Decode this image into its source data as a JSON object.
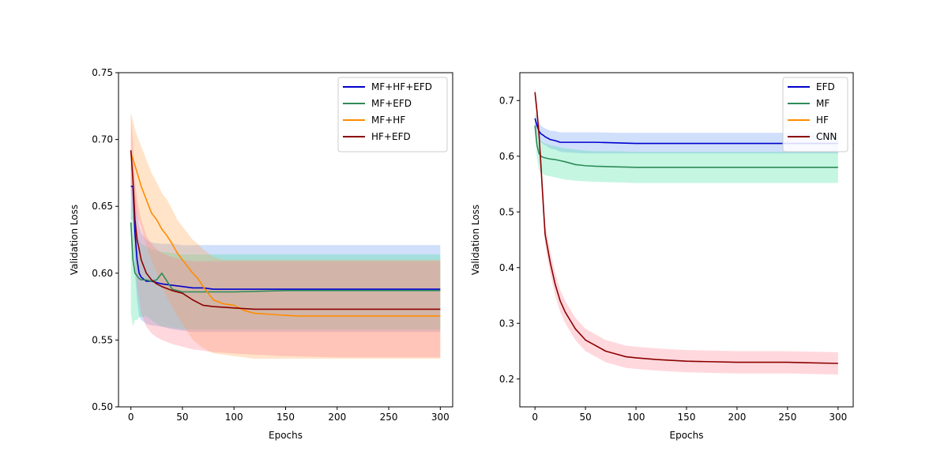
{
  "chart_data": [
    {
      "type": "line",
      "title": "",
      "xlabel": "Epochs",
      "ylabel": "Validation Loss",
      "xlim": [
        -12,
        312
      ],
      "ylim": [
        0.5,
        0.75
      ],
      "xticks": [
        0,
        50,
        100,
        150,
        200,
        250,
        300
      ],
      "yticks": [
        0.5,
        0.55,
        0.6,
        0.65,
        0.7,
        0.75
      ],
      "ytick_labels": [
        "0.50",
        "0.55",
        "0.60",
        "0.65",
        "0.70",
        "0.75"
      ],
      "legend_position": "top-right",
      "series": [
        {
          "name": "MF+HF+EFD",
          "color": "#0000cd",
          "band_color": "#6495ed",
          "x": [
            0,
            2,
            4,
            6,
            8,
            10,
            15,
            20,
            30,
            40,
            50,
            60,
            70,
            80,
            100,
            150,
            200,
            250,
            300
          ],
          "mean": [
            0.665,
            0.665,
            0.63,
            0.61,
            0.6,
            0.597,
            0.594,
            0.594,
            0.592,
            0.591,
            0.59,
            0.589,
            0.589,
            0.588,
            0.588,
            0.588,
            0.588,
            0.588,
            0.588
          ],
          "upper": [
            0.69,
            0.68,
            0.66,
            0.645,
            0.635,
            0.63,
            0.625,
            0.623,
            0.622,
            0.622,
            0.621,
            0.621,
            0.621,
            0.621,
            0.621,
            0.621,
            0.621,
            0.621,
            0.621
          ],
          "lower": [
            0.64,
            0.64,
            0.6,
            0.58,
            0.568,
            0.565,
            0.562,
            0.561,
            0.56,
            0.558,
            0.557,
            0.556,
            0.556,
            0.556,
            0.556,
            0.556,
            0.556,
            0.556,
            0.556
          ]
        },
        {
          "name": "MF+EFD",
          "color": "#2e8b57",
          "band_color": "#40e0a0",
          "x": [
            0,
            2,
            4,
            6,
            8,
            10,
            15,
            20,
            25,
            30,
            40,
            50,
            60,
            80,
            100,
            150,
            200,
            250,
            300
          ],
          "mean": [
            0.638,
            0.61,
            0.6,
            0.598,
            0.596,
            0.595,
            0.595,
            0.594,
            0.595,
            0.6,
            0.588,
            0.586,
            0.586,
            0.586,
            0.586,
            0.587,
            0.587,
            0.587,
            0.587
          ],
          "upper": [
            0.66,
            0.645,
            0.635,
            0.63,
            0.625,
            0.622,
            0.62,
            0.618,
            0.617,
            0.616,
            0.615,
            0.614,
            0.614,
            0.614,
            0.614,
            0.614,
            0.614,
            0.614,
            0.614
          ],
          "lower": [
            0.57,
            0.56,
            0.565,
            0.565,
            0.567,
            0.567,
            0.568,
            0.565,
            0.562,
            0.56,
            0.559,
            0.558,
            0.558,
            0.558,
            0.558,
            0.558,
            0.558,
            0.558,
            0.558
          ]
        },
        {
          "name": "MF+HF",
          "color": "#ff8c00",
          "band_color": "#ffa54f",
          "x": [
            0,
            5,
            10,
            15,
            20,
            25,
            30,
            35,
            40,
            45,
            50,
            55,
            60,
            65,
            70,
            75,
            80,
            90,
            100,
            110,
            120,
            140,
            160,
            200,
            250,
            300
          ],
          "mean": [
            0.69,
            0.678,
            0.665,
            0.655,
            0.645,
            0.64,
            0.633,
            0.628,
            0.622,
            0.615,
            0.61,
            0.605,
            0.6,
            0.596,
            0.59,
            0.585,
            0.58,
            0.577,
            0.576,
            0.572,
            0.57,
            0.569,
            0.568,
            0.568,
            0.568,
            0.568
          ],
          "upper": [
            0.72,
            0.705,
            0.695,
            0.685,
            0.675,
            0.668,
            0.66,
            0.655,
            0.648,
            0.64,
            0.635,
            0.63,
            0.625,
            0.622,
            0.618,
            0.615,
            0.612,
            0.61,
            0.61,
            0.61,
            0.61,
            0.61,
            0.61,
            0.61,
            0.61,
            0.61
          ],
          "lower": [
            0.66,
            0.645,
            0.635,
            0.62,
            0.61,
            0.6,
            0.59,
            0.582,
            0.575,
            0.568,
            0.562,
            0.556,
            0.55,
            0.547,
            0.544,
            0.542,
            0.54,
            0.539,
            0.538,
            0.537,
            0.536,
            0.536,
            0.536,
            0.536,
            0.536,
            0.536
          ]
        },
        {
          "name": "HF+EFD",
          "color": "#8b0000",
          "band_color": "#ff7f8f",
          "x": [
            0,
            2,
            4,
            6,
            8,
            10,
            15,
            20,
            25,
            30,
            40,
            50,
            60,
            70,
            80,
            100,
            120,
            150,
            200,
            250,
            300
          ],
          "mean": [
            0.692,
            0.67,
            0.64,
            0.625,
            0.618,
            0.61,
            0.6,
            0.595,
            0.592,
            0.59,
            0.587,
            0.585,
            0.58,
            0.576,
            0.575,
            0.574,
            0.573,
            0.573,
            0.573,
            0.573,
            0.573
          ],
          "upper": [
            0.72,
            0.7,
            0.67,
            0.655,
            0.648,
            0.64,
            0.628,
            0.622,
            0.618,
            0.615,
            0.612,
            0.61,
            0.609,
            0.609,
            0.609,
            0.609,
            0.609,
            0.609,
            0.609,
            0.609,
            0.609
          ],
          "lower": [
            0.665,
            0.64,
            0.61,
            0.59,
            0.58,
            0.57,
            0.56,
            0.555,
            0.552,
            0.55,
            0.547,
            0.545,
            0.543,
            0.542,
            0.541,
            0.54,
            0.539,
            0.538,
            0.537,
            0.537,
            0.537
          ]
        }
      ]
    },
    {
      "type": "line",
      "title": "",
      "xlabel": "Epochs",
      "ylabel": "Validation Loss",
      "xlim": [
        -15,
        315
      ],
      "ylim": [
        0.15,
        0.75
      ],
      "xticks": [
        0,
        50,
        100,
        150,
        200,
        250,
        300
      ],
      "yticks": [
        0.2,
        0.3,
        0.4,
        0.5,
        0.6,
        0.7
      ],
      "ytick_labels": [
        "0.2",
        "0.3",
        "0.4",
        "0.5",
        "0.6",
        "0.7"
      ],
      "legend_position": "top-right",
      "series": [
        {
          "name": "EFD",
          "color": "#0000cd",
          "band_color": "#6495ed",
          "x": [
            0,
            2,
            4,
            6,
            8,
            10,
            15,
            20,
            25,
            30,
            40,
            50,
            60,
            80,
            100,
            150,
            200,
            250,
            300
          ],
          "mean": [
            0.668,
            0.655,
            0.645,
            0.64,
            0.638,
            0.635,
            0.63,
            0.628,
            0.625,
            0.625,
            0.625,
            0.625,
            0.625,
            0.624,
            0.623,
            0.623,
            0.623,
            0.623,
            0.623
          ],
          "upper": [
            0.68,
            0.67,
            0.66,
            0.655,
            0.652,
            0.65,
            0.646,
            0.645,
            0.643,
            0.643,
            0.643,
            0.643,
            0.643,
            0.642,
            0.642,
            0.642,
            0.642,
            0.642,
            0.642
          ],
          "lower": [
            0.655,
            0.64,
            0.63,
            0.625,
            0.622,
            0.62,
            0.614,
            0.612,
            0.608,
            0.607,
            0.606,
            0.605,
            0.605,
            0.605,
            0.605,
            0.605,
            0.605,
            0.605,
            0.605
          ]
        },
        {
          "name": "MF",
          "color": "#2e8b57",
          "band_color": "#40e0a0",
          "x": [
            0,
            2,
            4,
            6,
            8,
            10,
            15,
            20,
            25,
            30,
            40,
            50,
            60,
            80,
            100,
            150,
            200,
            250,
            300
          ],
          "mean": [
            0.655,
            0.62,
            0.605,
            0.6,
            0.598,
            0.597,
            0.595,
            0.594,
            0.592,
            0.59,
            0.585,
            0.583,
            0.582,
            0.581,
            0.58,
            0.58,
            0.58,
            0.58,
            0.58
          ],
          "upper": [
            0.67,
            0.645,
            0.632,
            0.628,
            0.625,
            0.623,
            0.62,
            0.618,
            0.616,
            0.614,
            0.612,
            0.61,
            0.609,
            0.609,
            0.608,
            0.608,
            0.608,
            0.608,
            0.608
          ],
          "lower": [
            0.64,
            0.595,
            0.575,
            0.57,
            0.568,
            0.566,
            0.564,
            0.562,
            0.56,
            0.558,
            0.556,
            0.555,
            0.554,
            0.553,
            0.552,
            0.552,
            0.552,
            0.552,
            0.552
          ]
        },
        {
          "name": "HF",
          "color": "#ff8c00",
          "band_color": "#ffa54f",
          "x": [],
          "mean": [],
          "upper": [],
          "lower": []
        },
        {
          "name": "CNN",
          "color": "#8b0000",
          "band_color": "#ff7f8f",
          "x": [
            0,
            2,
            4,
            6,
            8,
            10,
            12,
            15,
            20,
            25,
            30,
            35,
            40,
            45,
            50,
            60,
            70,
            80,
            90,
            100,
            120,
            150,
            200,
            250,
            300
          ],
          "mean": [
            0.715,
            0.68,
            0.64,
            0.58,
            0.52,
            0.46,
            0.44,
            0.41,
            0.37,
            0.34,
            0.32,
            0.305,
            0.29,
            0.28,
            0.27,
            0.26,
            0.25,
            0.245,
            0.24,
            0.238,
            0.235,
            0.232,
            0.23,
            0.23,
            0.228
          ],
          "upper": [
            0.725,
            0.695,
            0.655,
            0.6,
            0.54,
            0.48,
            0.46,
            0.43,
            0.39,
            0.36,
            0.34,
            0.325,
            0.31,
            0.3,
            0.29,
            0.28,
            0.27,
            0.265,
            0.26,
            0.258,
            0.255,
            0.252,
            0.25,
            0.25,
            0.248
          ],
          "lower": [
            0.705,
            0.665,
            0.625,
            0.56,
            0.5,
            0.44,
            0.42,
            0.39,
            0.35,
            0.32,
            0.3,
            0.285,
            0.27,
            0.26,
            0.25,
            0.24,
            0.23,
            0.225,
            0.22,
            0.218,
            0.215,
            0.212,
            0.21,
            0.21,
            0.208
          ]
        }
      ]
    }
  ]
}
